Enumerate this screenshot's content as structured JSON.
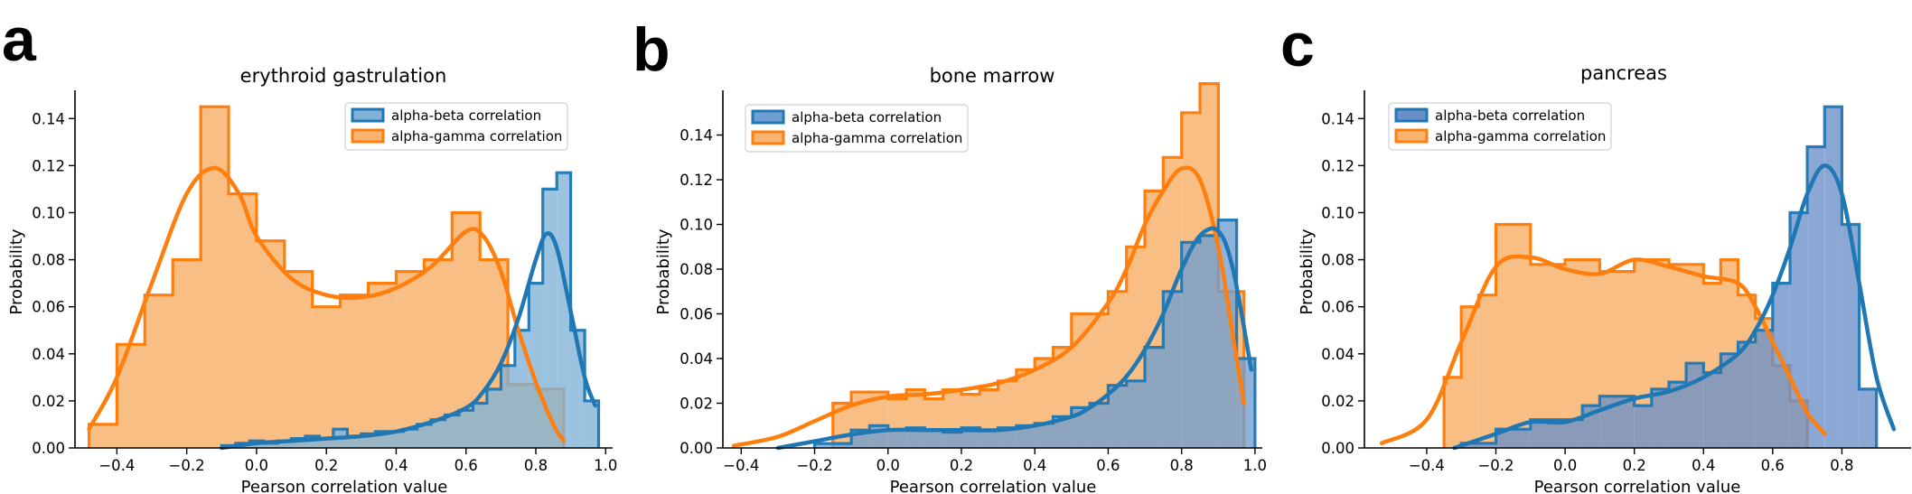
{
  "colors": {
    "alpha_beta": "#1f77b4",
    "alpha_gamma": "#ff7f0e",
    "beta_fill_a": "#7fb2d6",
    "beta_fill_c": "#6a8fc8",
    "gamma_fill": "#f8b36f",
    "overlap_fill": "#c9957c"
  },
  "chart_data": [
    {
      "panel": "a",
      "type": "area",
      "title": "erythroid gastrulation",
      "xlabel": "Pearson correlation value",
      "ylabel": "Probability",
      "xlim": [
        -0.52,
        1.02
      ],
      "ylim": [
        0,
        0.152
      ],
      "xticks": [
        -0.4,
        -0.2,
        0.0,
        0.2,
        0.4,
        0.6,
        0.8,
        1.0
      ],
      "yticks": [
        0.0,
        0.02,
        0.04,
        0.06,
        0.08,
        0.1,
        0.12,
        0.14
      ],
      "legend": [
        "alpha-beta correlation",
        "alpha-gamma correlation"
      ],
      "legend_position": "top-right",
      "series": [
        {
          "name": "alpha-beta correlation",
          "histogram": {
            "edges": [
              -0.1,
              -0.06,
              -0.02,
              0.02,
              0.06,
              0.1,
              0.14,
              0.18,
              0.22,
              0.26,
              0.3,
              0.34,
              0.38,
              0.42,
              0.46,
              0.5,
              0.54,
              0.58,
              0.62,
              0.66,
              0.7,
              0.74,
              0.78,
              0.82,
              0.86,
              0.9,
              0.94,
              0.98
            ],
            "values": [
              0.001,
              0.002,
              0.003,
              0.002,
              0.003,
              0.004,
              0.005,
              0.004,
              0.008,
              0.005,
              0.006,
              0.007,
              0.007,
              0.008,
              0.01,
              0.012,
              0.014,
              0.016,
              0.019,
              0.025,
              0.035,
              0.05,
              0.07,
              0.11,
              0.117,
              0.05,
              0.02
            ]
          },
          "kde": {
            "x": [
              -0.1,
              0.0,
              0.1,
              0.2,
              0.3,
              0.4,
              0.5,
              0.6,
              0.65,
              0.7,
              0.75,
              0.8,
              0.83,
              0.86,
              0.9,
              0.94,
              0.97
            ],
            "y": [
              0.0,
              0.002,
              0.003,
              0.004,
              0.005,
              0.007,
              0.011,
              0.017,
              0.024,
              0.036,
              0.055,
              0.08,
              0.091,
              0.085,
              0.058,
              0.03,
              0.018
            ]
          }
        },
        {
          "name": "alpha-gamma correlation",
          "histogram": {
            "edges": [
              -0.48,
              -0.4,
              -0.32,
              -0.24,
              -0.16,
              -0.08,
              0.0,
              0.08,
              0.16,
              0.24,
              0.32,
              0.4,
              0.48,
              0.56,
              0.64,
              0.72,
              0.8,
              0.88
            ],
            "values": [
              0.01,
              0.044,
              0.065,
              0.08,
              0.145,
              0.108,
              0.088,
              0.075,
              0.06,
              0.065,
              0.07,
              0.075,
              0.08,
              0.1,
              0.08,
              0.027,
              0.025
            ]
          },
          "kde": {
            "x": [
              -0.48,
              -0.4,
              -0.3,
              -0.2,
              -0.12,
              -0.05,
              0.0,
              0.1,
              0.2,
              0.3,
              0.4,
              0.5,
              0.6,
              0.65,
              0.7,
              0.75,
              0.8,
              0.85,
              0.88
            ],
            "y": [
              0.008,
              0.03,
              0.07,
              0.108,
              0.119,
              0.108,
              0.09,
              0.072,
              0.065,
              0.064,
              0.068,
              0.077,
              0.092,
              0.09,
              0.075,
              0.05,
              0.028,
              0.01,
              0.003
            ]
          }
        }
      ]
    },
    {
      "panel": "b",
      "type": "area",
      "title": "bone marrow",
      "xlabel": "Pearson correlation value",
      "ylabel": "Probability",
      "xlim": [
        -0.45,
        1.02
      ],
      "ylim": [
        0,
        0.16
      ],
      "xticks": [
        -0.4,
        -0.2,
        0.0,
        0.2,
        0.4,
        0.6,
        0.8,
        1.0
      ],
      "yticks": [
        0.0,
        0.02,
        0.04,
        0.06,
        0.08,
        0.1,
        0.12,
        0.14
      ],
      "legend": [
        "alpha-beta correlation",
        "alpha-gamma correlation"
      ],
      "legend_position": "top-left",
      "series": [
        {
          "name": "alpha-beta correlation",
          "histogram": {
            "edges": [
              -0.2,
              -0.1,
              -0.05,
              0.0,
              0.05,
              0.1,
              0.15,
              0.2,
              0.25,
              0.3,
              0.35,
              0.4,
              0.45,
              0.5,
              0.55,
              0.6,
              0.65,
              0.7,
              0.75,
              0.8,
              0.85,
              0.9,
              0.95,
              1.0
            ],
            "values": [
              0.002,
              0.008,
              0.01,
              0.008,
              0.009,
              0.008,
              0.007,
              0.009,
              0.008,
              0.009,
              0.01,
              0.011,
              0.014,
              0.018,
              0.02,
              0.028,
              0.03,
              0.045,
              0.07,
              0.092,
              0.095,
              0.102,
              0.04
            ]
          },
          "kde": {
            "x": [
              -0.3,
              -0.2,
              -0.1,
              0.0,
              0.1,
              0.2,
              0.3,
              0.4,
              0.5,
              0.55,
              0.6,
              0.65,
              0.7,
              0.75,
              0.8,
              0.85,
              0.9,
              0.94,
              0.99
            ],
            "y": [
              0.0,
              0.003,
              0.006,
              0.008,
              0.008,
              0.008,
              0.008,
              0.01,
              0.014,
              0.018,
              0.024,
              0.032,
              0.044,
              0.06,
              0.08,
              0.095,
              0.097,
              0.08,
              0.035
            ]
          }
        },
        {
          "name": "alpha-gamma correlation",
          "histogram": {
            "edges": [
              -0.15,
              -0.1,
              0.0,
              0.05,
              0.1,
              0.15,
              0.2,
              0.25,
              0.3,
              0.35,
              0.4,
              0.45,
              0.5,
              0.55,
              0.6,
              0.65,
              0.7,
              0.75,
              0.8,
              0.85,
              0.9,
              0.97
            ],
            "values": [
              0.02,
              0.025,
              0.022,
              0.026,
              0.022,
              0.026,
              0.024,
              0.026,
              0.03,
              0.035,
              0.04,
              0.045,
              0.06,
              0.06,
              0.07,
              0.09,
              0.115,
              0.13,
              0.15,
              0.163,
              0.07
            ]
          },
          "kde": {
            "x": [
              -0.42,
              -0.3,
              -0.2,
              -0.1,
              0.0,
              0.1,
              0.2,
              0.3,
              0.4,
              0.5,
              0.6,
              0.65,
              0.7,
              0.75,
              0.8,
              0.85,
              0.9,
              0.94,
              0.97
            ],
            "y": [
              0.001,
              0.005,
              0.012,
              0.019,
              0.023,
              0.024,
              0.026,
              0.029,
              0.035,
              0.045,
              0.065,
              0.08,
              0.1,
              0.115,
              0.125,
              0.12,
              0.09,
              0.05,
              0.02
            ]
          }
        }
      ]
    },
    {
      "panel": "c",
      "type": "area",
      "title": "pancreas",
      "xlabel": "Pearson correlation value",
      "ylabel": "Probability",
      "xlim": [
        -0.58,
        1.0
      ],
      "ylim": [
        0,
        0.152
      ],
      "xticks": [
        -0.4,
        -0.2,
        0.0,
        0.2,
        0.4,
        0.6,
        0.8
      ],
      "yticks": [
        0.0,
        0.02,
        0.04,
        0.06,
        0.08,
        0.1,
        0.12,
        0.14
      ],
      "legend": [
        "alpha-beta correlation",
        "alpha-gamma correlation"
      ],
      "legend_position": "top-left",
      "series": [
        {
          "name": "alpha-beta correlation",
          "histogram": {
            "edges": [
              -0.3,
              -0.2,
              -0.1,
              0.0,
              0.05,
              0.1,
              0.15,
              0.2,
              0.25,
              0.3,
              0.35,
              0.4,
              0.45,
              0.5,
              0.55,
              0.6,
              0.65,
              0.7,
              0.75,
              0.8,
              0.85,
              0.9
            ],
            "values": [
              0.002,
              0.008,
              0.012,
              0.012,
              0.018,
              0.022,
              0.022,
              0.018,
              0.025,
              0.028,
              0.036,
              0.032,
              0.04,
              0.045,
              0.05,
              0.07,
              0.1,
              0.128,
              0.145,
              0.095,
              0.025
            ]
          },
          "kde": {
            "x": [
              -0.32,
              -0.2,
              -0.1,
              0.0,
              0.1,
              0.2,
              0.3,
              0.4,
              0.5,
              0.55,
              0.6,
              0.65,
              0.7,
              0.75,
              0.8,
              0.85,
              0.9,
              0.95
            ],
            "y": [
              0.0,
              0.006,
              0.011,
              0.011,
              0.016,
              0.021,
              0.024,
              0.03,
              0.04,
              0.05,
              0.065,
              0.085,
              0.108,
              0.12,
              0.108,
              0.07,
              0.03,
              0.008
            ]
          }
        },
        {
          "name": "alpha-gamma correlation",
          "histogram": {
            "edges": [
              -0.35,
              -0.3,
              -0.25,
              -0.2,
              -0.1,
              0.0,
              0.1,
              0.2,
              0.3,
              0.4,
              0.45,
              0.5,
              0.55,
              0.6,
              0.65,
              0.7
            ],
            "values": [
              0.03,
              0.06,
              0.065,
              0.095,
              0.078,
              0.08,
              0.075,
              0.08,
              0.078,
              0.07,
              0.08,
              0.065,
              0.055,
              0.035,
              0.02
            ]
          },
          "kde": {
            "x": [
              -0.53,
              -0.4,
              -0.3,
              -0.2,
              -0.1,
              0.0,
              0.1,
              0.2,
              0.3,
              0.4,
              0.5,
              0.55,
              0.6,
              0.65,
              0.7,
              0.75
            ],
            "y": [
              0.002,
              0.012,
              0.045,
              0.077,
              0.081,
              0.076,
              0.074,
              0.08,
              0.077,
              0.073,
              0.07,
              0.06,
              0.045,
              0.03,
              0.015,
              0.006
            ]
          }
        }
      ]
    }
  ]
}
